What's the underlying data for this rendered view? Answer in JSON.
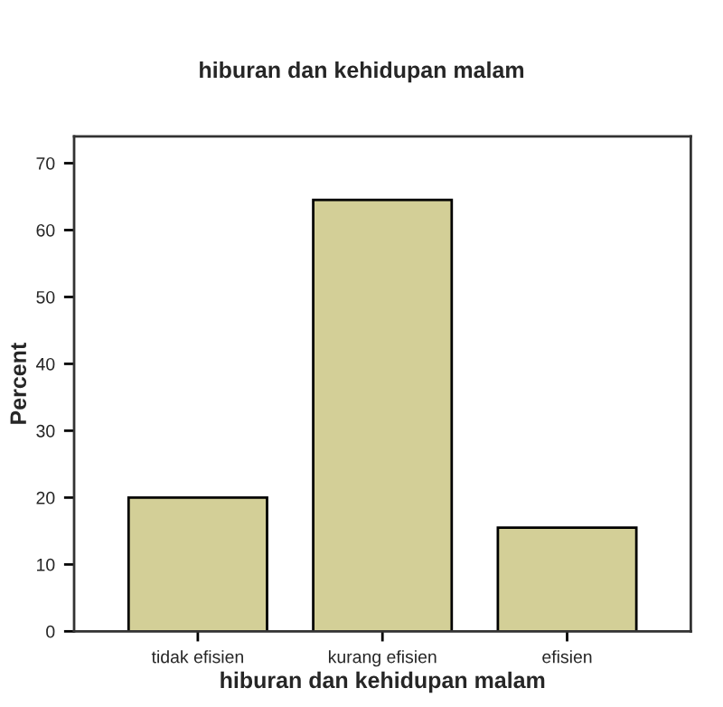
{
  "chart_data": {
    "type": "bar",
    "title": "hiburan dan kehidupan malam",
    "xlabel": "hiburan dan kehidupan malam",
    "ylabel": "Percent",
    "categories": [
      "tidak efisien",
      "kurang efisien",
      "efisien"
    ],
    "values": [
      20,
      64.5,
      15.5
    ],
    "color": "#d3cf97",
    "ylim": [
      0,
      74
    ],
    "yticks": [
      0,
      10,
      20,
      30,
      40,
      50,
      60,
      70
    ],
    "grid": false,
    "legend": false
  }
}
